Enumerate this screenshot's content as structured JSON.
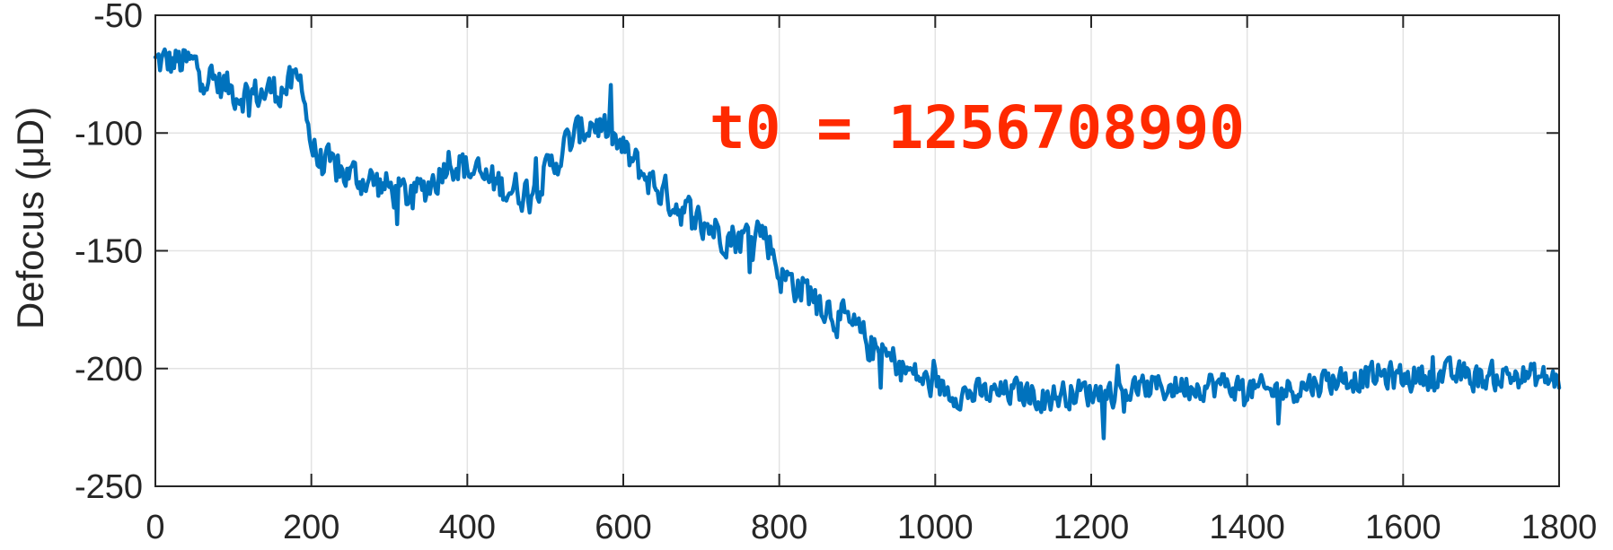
{
  "chart_data": {
    "type": "line",
    "title": "",
    "xlabel": "",
    "ylabel": "Defocus (μD)",
    "xlim": [
      0,
      1800
    ],
    "ylim": [
      -250,
      -50
    ],
    "xticks": [
      0,
      200,
      400,
      600,
      800,
      1000,
      1200,
      1400,
      1600,
      1800
    ],
    "yticks": [
      -250,
      -200,
      -150,
      -100,
      -50
    ],
    "grid": true,
    "annotation": {
      "text": "t0 = 1256708990",
      "color": "#ff2a00"
    },
    "series": [
      {
        "color": "#0072bd",
        "x": [
          0,
          25,
          50,
          75,
          100,
          125,
          150,
          175,
          190,
          195,
          200,
          210,
          225,
          250,
          275,
          300,
          325,
          340,
          350,
          365,
          375,
          390,
          400,
          425,
          450,
          475,
          500,
          525,
          550,
          560,
          575,
          600,
          625,
          650,
          675,
          700,
          725,
          750,
          775,
          790,
          800,
          825,
          850,
          875,
          900,
          925,
          950,
          975,
          1000,
          1025,
          1050,
          1075,
          1100,
          1125,
          1150,
          1175,
          1200,
          1225,
          1250,
          1275,
          1300,
          1325,
          1350,
          1375,
          1400,
          1425,
          1450,
          1475,
          1500,
          1525,
          1550,
          1575,
          1600,
          1625,
          1650,
          1675,
          1700,
          1725,
          1750,
          1775,
          1800
        ],
        "y": [
          -70,
          -70,
          -71,
          -78,
          -82,
          -84,
          -82,
          -80,
          -78,
          -95,
          -105,
          -112,
          -115,
          -118,
          -120,
          -124,
          -127,
          -125,
          -122,
          -117,
          -110,
          -113,
          -115,
          -120,
          -123,
          -125,
          -118,
          -106,
          -98,
          -95,
          -98,
          -108,
          -117,
          -125,
          -132,
          -138,
          -142,
          -145,
          -140,
          -148,
          -160,
          -165,
          -170,
          -178,
          -185,
          -193,
          -198,
          -203,
          -208,
          -210,
          -211,
          -211,
          -210,
          -211,
          -212,
          -210,
          -210,
          -210,
          -209,
          -208,
          -208,
          -207,
          -207,
          -207,
          -209,
          -210,
          -209,
          -207,
          -205,
          -204,
          -204,
          -203,
          -204,
          -203,
          -203,
          -203,
          -204,
          -203,
          -203,
          -204,
          -205
        ]
      }
    ]
  }
}
